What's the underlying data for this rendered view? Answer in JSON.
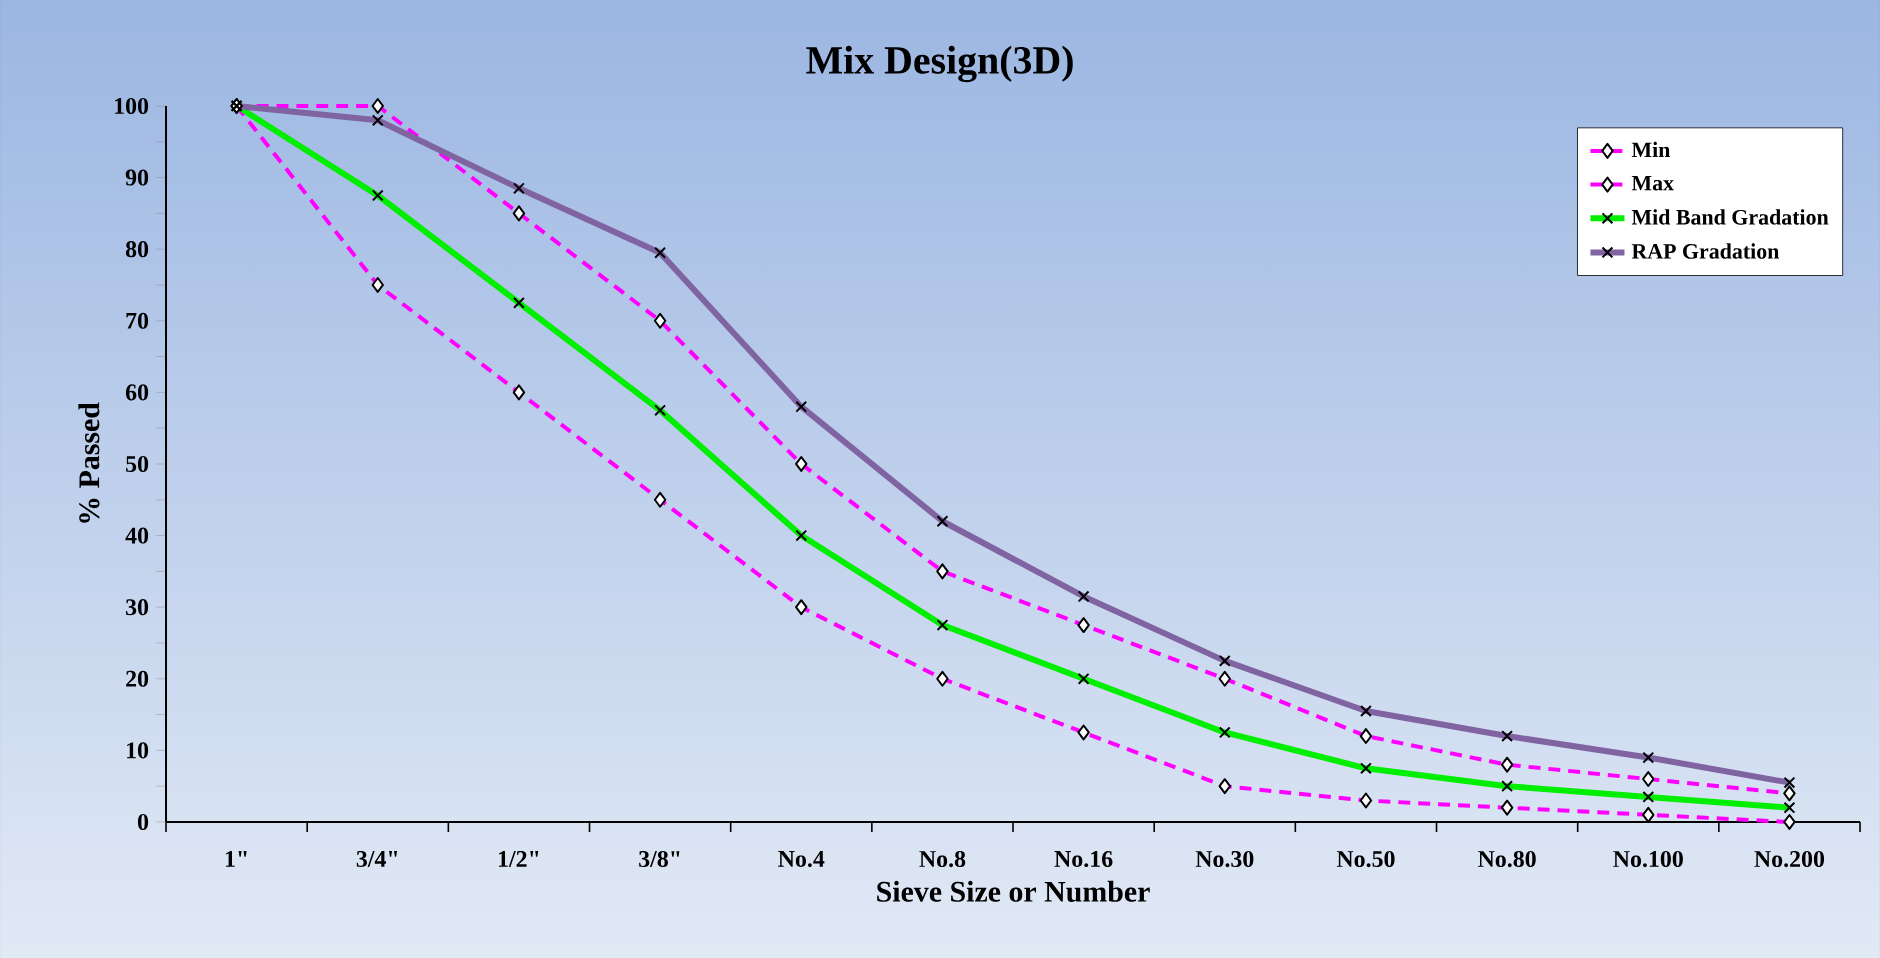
{
  "chart_data": {
    "type": "line",
    "title": "Mix Design(3D)",
    "xlabel": "Sieve Size or Number",
    "ylabel": "% Passed",
    "categories": [
      "1\"",
      "3/4\"",
      "1/2\"",
      "3/8\"",
      "No.4",
      "No.8",
      "No.16",
      "No.30",
      "No.50",
      "No.80",
      "No.100",
      "No.200"
    ],
    "series": [
      {
        "name": "Min",
        "color": "#ff00ff",
        "marker": "diamond",
        "line_style": "dashed",
        "values": [
          100,
          75,
          60,
          45,
          30,
          20,
          12.5,
          5,
          3,
          2,
          1,
          0
        ]
      },
      {
        "name": "Max",
        "color": "#ff00ff",
        "marker": "diamond",
        "line_style": "dashed",
        "values": [
          100,
          100,
          85,
          70,
          50,
          35,
          27.5,
          20,
          12,
          8,
          6,
          4
        ]
      },
      {
        "name": "Mid Band Gradation",
        "color": "#00ee00",
        "marker": "cross",
        "line_style": "solid",
        "values": [
          100,
          87.5,
          72.5,
          57.5,
          40,
          27.5,
          20,
          12.5,
          7.5,
          5,
          3.5,
          2
        ]
      },
      {
        "name": "RAP Gradation",
        "color": "#8064a2",
        "marker": "cross",
        "line_style": "solid",
        "values": [
          100,
          98,
          88.5,
          79.5,
          58,
          42,
          31.5,
          22.5,
          15.5,
          12,
          9,
          5.5
        ]
      }
    ],
    "ylim": [
      0,
      100
    ],
    "yticks": [
      0,
      {
        "value": 5,
        "label": null
      },
      10,
      {
        "value": 15,
        "label": null
      },
      20,
      {
        "value": 25,
        "label": null
      },
      30,
      {
        "value": 35,
        "label": null
      },
      40,
      {
        "value": 45,
        "label": null
      },
      50,
      {
        "value": 55,
        "label": null
      },
      60,
      {
        "value": 65,
        "label": null
      },
      70,
      {
        "value": 75,
        "label": null
      },
      80,
      {
        "value": 85,
        "label": null
      },
      90,
      {
        "value": 95,
        "label": null
      },
      100
    ],
    "legend": "top right",
    "grid": false
  }
}
